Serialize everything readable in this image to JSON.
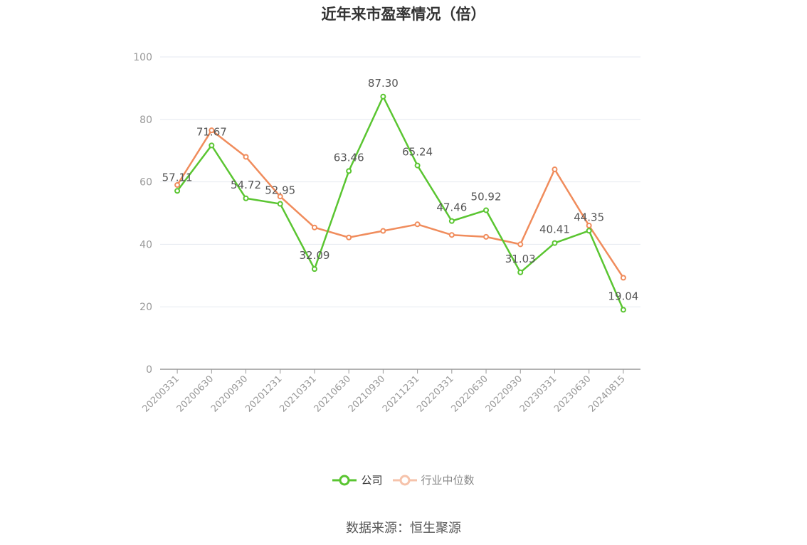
{
  "chart_data": {
    "type": "line",
    "title": "近年来市盈率情况（倍）",
    "categories": [
      "20200331",
      "20200630",
      "20200930",
      "20201231",
      "20210331",
      "20210630",
      "20210930",
      "20211231",
      "20220331",
      "20220630",
      "20220930",
      "20230331",
      "20230630",
      "20240815"
    ],
    "ylim": [
      0,
      100
    ],
    "yticks": [
      0,
      20,
      40,
      60,
      80,
      100
    ],
    "grid": true,
    "legend_position": "bottom",
    "series": [
      {
        "name": "公司",
        "color": "#5ac531",
        "values": [
          57.11,
          71.67,
          54.72,
          52.95,
          32.09,
          63.46,
          87.3,
          65.24,
          47.46,
          50.92,
          31.03,
          40.41,
          44.35,
          19.04
        ],
        "labels": [
          "57.11",
          "71.67",
          "54.72",
          "52.95",
          "32.09",
          "63.46",
          "87.30",
          "65.24",
          "47.46",
          "50.92",
          "31.03",
          "40.41",
          "44.35",
          "19.04"
        ]
      },
      {
        "name": "行业中位数",
        "color": "#f08c5c",
        "values": [
          59.0,
          76.5,
          68.0,
          55.3,
          45.4,
          42.2,
          44.3,
          46.4,
          43.0,
          42.4,
          40.0,
          64.0,
          46.0,
          29.3
        ]
      }
    ]
  },
  "source": "数据来源：恒生聚源"
}
